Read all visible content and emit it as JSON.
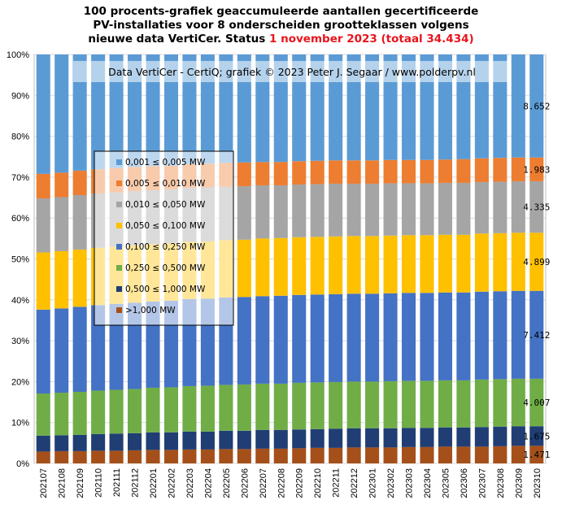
{
  "chart_data": {
    "type": "bar",
    "stacked": true,
    "title_lines": [
      "100 procents-grafiek geaccumuleerde aantallen gecertificeerde",
      "PV-installaties voor 8 onderscheiden grootteklassen volgens",
      "nieuwe data VertiCer. Status "
    ],
    "title_highlight": "1 november 2023 (totaal 34.434)",
    "title_highlight_color": "#e8141c",
    "watermark": "Data VertiCer - CertiQ; grafiek © 2023 Peter J. Segaar / www.polderpv.nl",
    "ylim": [
      0,
      100
    ],
    "y_ticks": [
      "0%",
      "10%",
      "20%",
      "30%",
      "40%",
      "50%",
      "60%",
      "70%",
      "80%",
      "90%",
      "100%"
    ],
    "grid": true,
    "legend_position": "left-middle",
    "categories": [
      "202107",
      "202108",
      "202109",
      "202110",
      "202111",
      "202112",
      "202201",
      "202202",
      "202203",
      "202204",
      "202205",
      "202206",
      "202207",
      "202208",
      "202209",
      "202210",
      "202211",
      "202212",
      "202301",
      "202302",
      "202303",
      "202304",
      "202305",
      "202306",
      "202307",
      "202308",
      "202309",
      "202310"
    ],
    "series": [
      {
        "name": ">1,000 MW",
        "color": "#a5501a",
        "values": [
          2.9,
          3.0,
          3.0,
          3.1,
          3.1,
          3.2,
          3.3,
          3.3,
          3.4,
          3.4,
          3.5,
          3.5,
          3.6,
          3.6,
          3.7,
          3.8,
          3.8,
          3.9,
          3.9,
          3.9,
          4.0,
          4.0,
          4.1,
          4.1,
          4.1,
          4.2,
          4.3,
          4.3
        ]
      },
      {
        "name": "0,500 ≤ 1,000 MW",
        "color": "#203e74",
        "values": [
          3.9,
          3.9,
          4.0,
          4.1,
          4.2,
          4.2,
          4.3,
          4.3,
          4.4,
          4.4,
          4.5,
          4.5,
          4.6,
          4.6,
          4.6,
          4.6,
          4.7,
          4.7,
          4.7,
          4.7,
          4.7,
          4.7,
          4.7,
          4.7,
          4.8,
          4.8,
          4.8,
          4.8
        ]
      },
      {
        "name": "0,250 ≤ 0,500 MW",
        "color": "#70ad47",
        "values": [
          10.3,
          10.4,
          10.5,
          10.6,
          10.7,
          10.8,
          10.9,
          11.0,
          11.1,
          11.2,
          11.2,
          11.3,
          11.3,
          11.3,
          11.4,
          11.4,
          11.4,
          11.4,
          11.4,
          11.5,
          11.5,
          11.5,
          11.5,
          11.5,
          11.6,
          11.6,
          11.6,
          11.6
        ]
      },
      {
        "name": "0,100 ≤ 0,250 MW",
        "color": "#4472c4",
        "values": [
          20.5,
          20.6,
          20.8,
          20.9,
          21.0,
          21.1,
          21.1,
          21.2,
          21.3,
          21.3,
          21.4,
          21.4,
          21.4,
          21.5,
          21.5,
          21.5,
          21.5,
          21.5,
          21.5,
          21.5,
          21.5,
          21.5,
          21.5,
          21.5,
          21.5,
          21.5,
          21.5,
          21.5
        ]
      },
      {
        "name": "0,050 ≤ 0,100 MW",
        "color": "#ffc000",
        "values": [
          14.0,
          14.0,
          14.0,
          14.0,
          14.0,
          14.0,
          14.0,
          14.0,
          14.0,
          14.0,
          14.0,
          14.0,
          14.1,
          14.1,
          14.1,
          14.1,
          14.1,
          14.1,
          14.1,
          14.1,
          14.1,
          14.1,
          14.1,
          14.1,
          14.2,
          14.2,
          14.2,
          14.2
        ]
      },
      {
        "name": "0,010 ≤ 0,050 MW",
        "color": "#a5a5a5",
        "values": [
          13.2,
          13.2,
          13.3,
          13.3,
          13.3,
          13.3,
          13.2,
          13.2,
          13.2,
          13.2,
          13.1,
          13.1,
          13.0,
          12.9,
          12.9,
          12.9,
          12.9,
          12.8,
          12.8,
          12.8,
          12.7,
          12.7,
          12.7,
          12.7,
          12.6,
          12.6,
          12.6,
          12.6
        ]
      },
      {
        "name": "0,005 ≤ 0,010 MW",
        "color": "#ed7d31",
        "values": [
          6.0,
          6.0,
          6.0,
          5.9,
          5.9,
          5.9,
          5.9,
          5.8,
          5.8,
          5.8,
          5.8,
          5.8,
          5.7,
          5.7,
          5.7,
          5.7,
          5.7,
          5.7,
          5.7,
          5.7,
          5.7,
          5.7,
          5.7,
          5.8,
          5.8,
          5.8,
          5.8,
          5.8
        ]
      },
      {
        "name": "0,001 ≤ 0,005 MW",
        "color": "#5b9bd5",
        "values": [
          29.2,
          28.9,
          28.4,
          28.1,
          27.8,
          27.5,
          27.3,
          27.2,
          26.8,
          26.7,
          26.5,
          26.4,
          26.3,
          26.3,
          26.1,
          26.0,
          25.9,
          25.9,
          25.9,
          25.8,
          25.8,
          25.8,
          25.7,
          25.6,
          25.4,
          25.3,
          25.2,
          25.2
        ]
      }
    ],
    "end_labels": [
      "1.471",
      "1.675",
      "4.007",
      "7.412",
      "4.899",
      "4.335",
      "1.983",
      "8.652"
    ]
  }
}
